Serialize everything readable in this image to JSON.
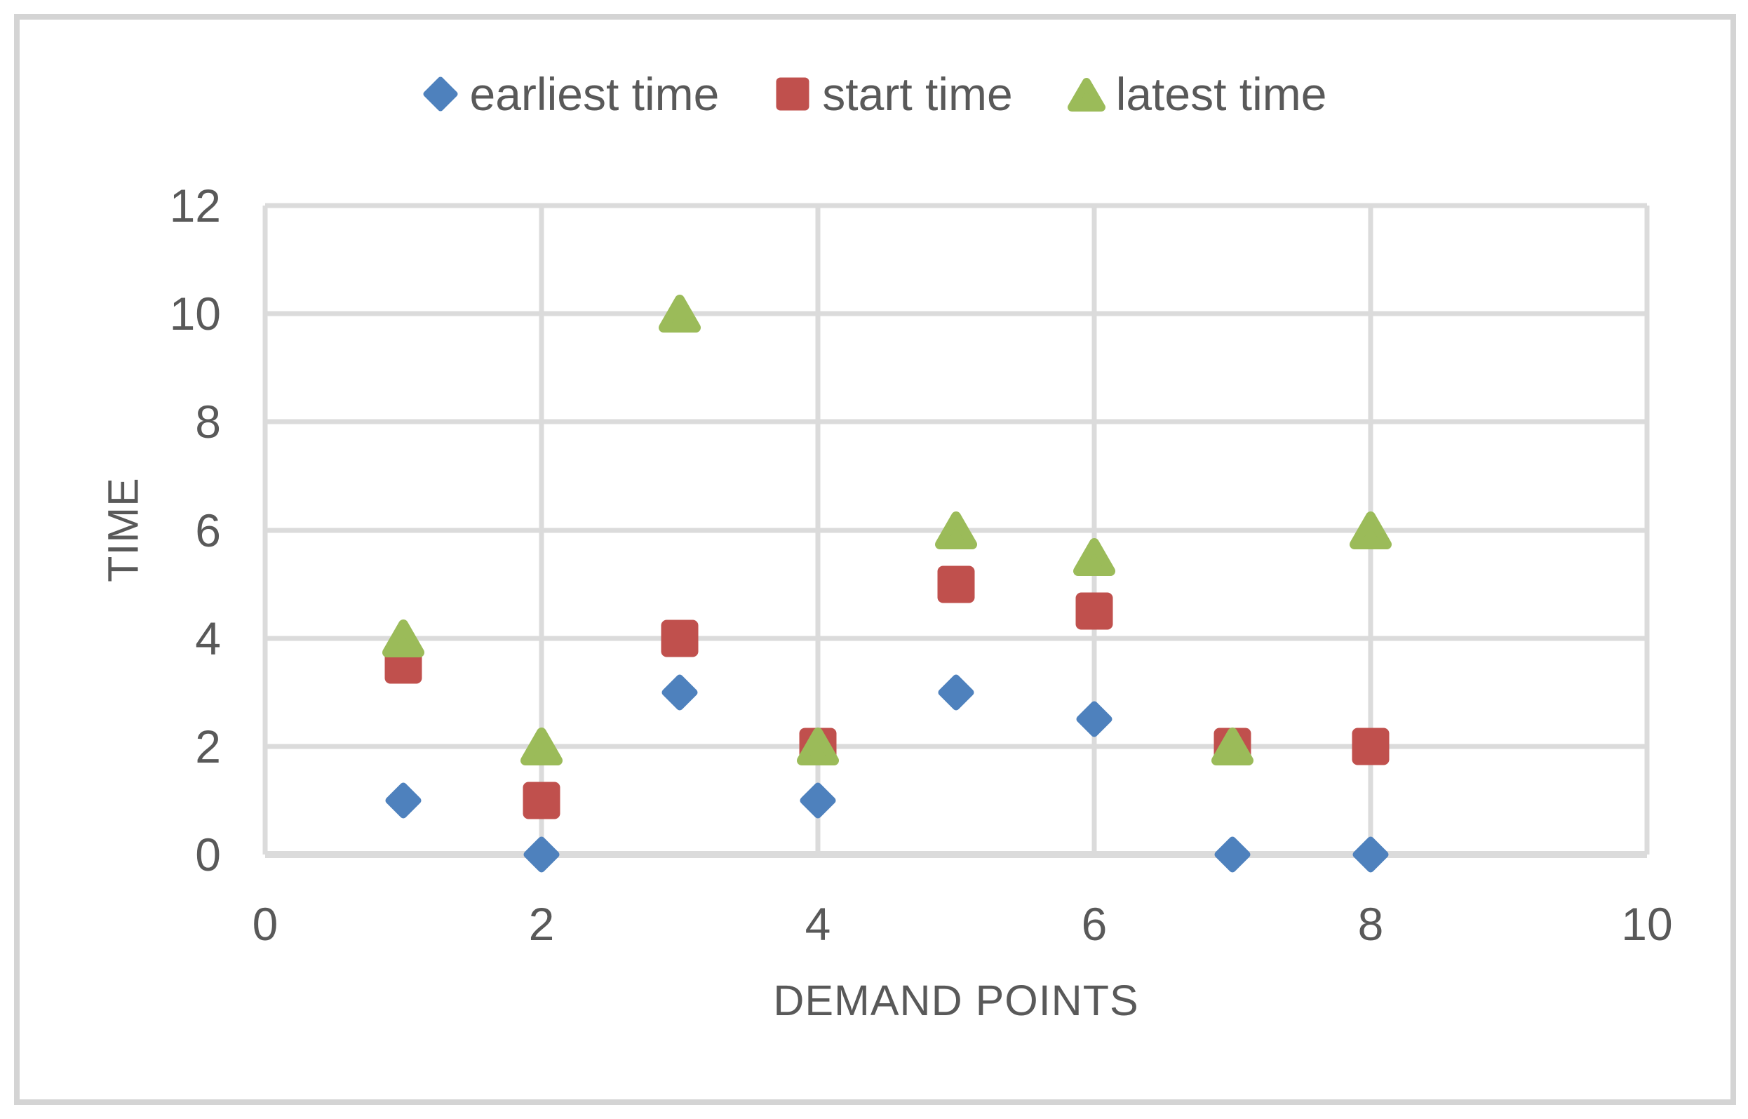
{
  "legend": {
    "items": [
      {
        "label": "earliest time",
        "marker": "diamond",
        "color": "#4E81BD"
      },
      {
        "label": "start time",
        "marker": "square",
        "color": "#C0504D"
      },
      {
        "label": "latest time",
        "marker": "triangle",
        "color": "#9BBB59"
      }
    ]
  },
  "chart_data": {
    "type": "scatter",
    "title": "",
    "xlabel": "DEMAND POINTS",
    "ylabel": "TIME",
    "xlim": [
      0,
      10
    ],
    "ylim": [
      0,
      12
    ],
    "xticks": [
      0,
      2,
      4,
      6,
      8,
      10
    ],
    "yticks": [
      0,
      2,
      4,
      6,
      8,
      10,
      12
    ],
    "grid": true,
    "legend_position": "top-center",
    "x": [
      1,
      2,
      3,
      4,
      5,
      6,
      7,
      8
    ],
    "series": [
      {
        "name": "earliest time",
        "marker": "diamond",
        "color": "#4E81BD",
        "values": [
          1,
          0,
          3,
          1,
          3,
          2.5,
          0,
          0
        ]
      },
      {
        "name": "start time",
        "marker": "square",
        "color": "#C0504D",
        "values": [
          3.5,
          1,
          4,
          2,
          5,
          4.5,
          2,
          2
        ]
      },
      {
        "name": "latest time",
        "marker": "triangle",
        "color": "#9BBB59",
        "values": [
          4,
          2,
          10,
          2,
          6,
          5.5,
          2,
          6
        ]
      }
    ]
  },
  "colors": {
    "text": "#595959",
    "gridline": "#DBDBDB",
    "figure_border": "#D4D4D4",
    "background": "#FFFFFF"
  }
}
